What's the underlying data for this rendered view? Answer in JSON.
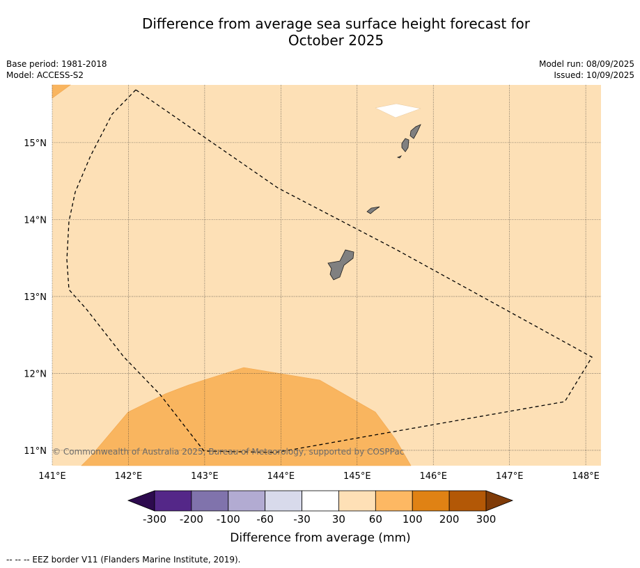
{
  "title": {
    "line1": "Difference from average sea surface height forecast for",
    "line2": "October 2025"
  },
  "meta_left": {
    "base_period": "Base period: 1981-2018",
    "model": "Model: ACCESS-S2"
  },
  "meta_right": {
    "model_run": "Model run: 08/09/2025",
    "issued": "Issued: 10/09/2025"
  },
  "map": {
    "lon_range": [
      141.0,
      148.2
    ],
    "lat_range": [
      10.8,
      15.75
    ],
    "lon_ticks": [
      {
        "value": 141,
        "label": "141°E"
      },
      {
        "value": 142,
        "label": "142°E"
      },
      {
        "value": 143,
        "label": "143°E"
      },
      {
        "value": 144,
        "label": "144°E"
      },
      {
        "value": 145,
        "label": "145°E"
      },
      {
        "value": 146,
        "label": "146°E"
      },
      {
        "value": 147,
        "label": "147°E"
      },
      {
        "value": 148,
        "label": "148°E"
      }
    ],
    "lat_ticks": [
      {
        "value": 15,
        "label": "15°N"
      },
      {
        "value": 14,
        "label": "14°N"
      },
      {
        "value": 13,
        "label": "13°N"
      },
      {
        "value": 12,
        "label": "12°N"
      },
      {
        "value": 11,
        "label": "11°N"
      }
    ],
    "background_class_color": "#fde0b6",
    "warm_class_color": "#f9b55f",
    "land_color": "#808080",
    "copyright": "© Commonwealth of Australia 2025, Bureau of Meteorology, supported by COSPPac"
  },
  "colorbar": {
    "label": "Difference from average (mm)",
    "under_color": "#2d0a4e",
    "over_color": "#7f3b08",
    "colors": [
      "#542788",
      "#8073ac",
      "#b2abd2",
      "#d8daeb",
      "#ffffff",
      "#fee0b6",
      "#fdb863",
      "#e08214",
      "#b35806"
    ],
    "ticks": [
      "-300",
      "-200",
      "-100",
      "-60",
      "-30",
      "30",
      "60",
      "100",
      "200",
      "300"
    ]
  },
  "footnote": "--  --  -- EEZ border V11 (Flanders Marine Institute, 2019)."
}
